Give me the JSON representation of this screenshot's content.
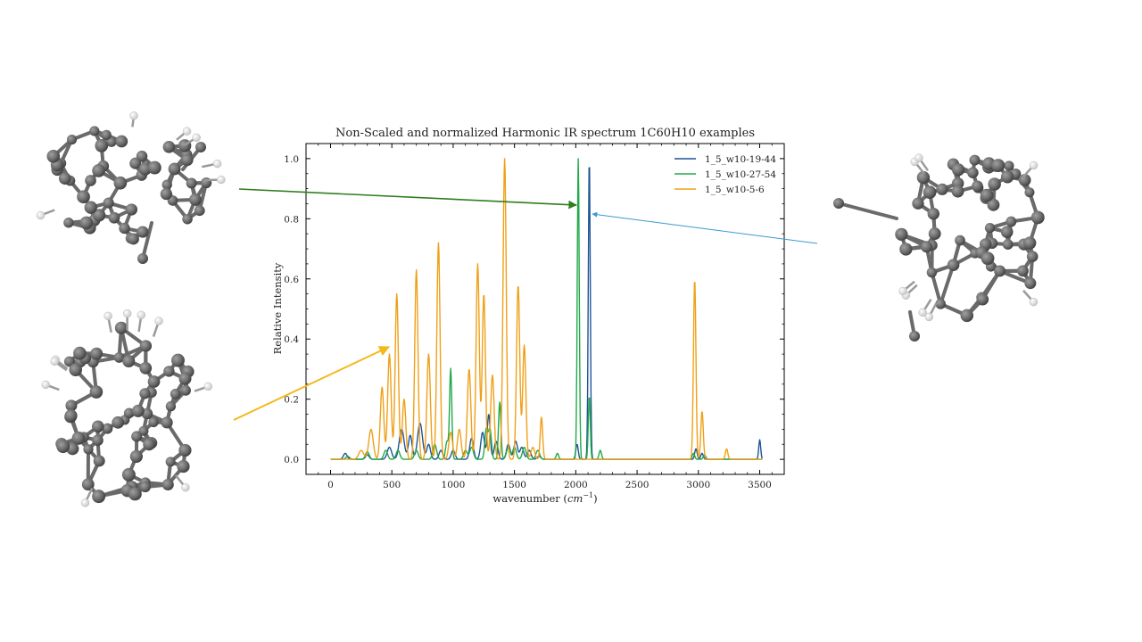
{
  "chart_data": {
    "type": "line",
    "title": "Non-Scaled and normalized Harmonic IR spectrum 1C60H10 examples",
    "xlabel": "wavenumber",
    "xlabel_unit": "cm",
    "xlabel_unit_exp": "−1",
    "ylabel": "Relative Intensity",
    "xlim": [
      -200,
      3700
    ],
    "ylim": [
      -0.05,
      1.05
    ],
    "xticks": [
      "0",
      "500",
      "1000",
      "1500",
      "2000",
      "2500",
      "3000",
      "3500"
    ],
    "yticks": [
      "0.0",
      "0.2",
      "0.4",
      "0.6",
      "0.8",
      "1.0"
    ],
    "grid": false,
    "legend_position": "top-right",
    "series": [
      {
        "name": "1_5_w10-19-44",
        "color": "#1f5596",
        "peaks": [
          [
            120,
            0.02,
            15
          ],
          [
            300,
            0.015,
            15
          ],
          [
            480,
            0.04,
            18
          ],
          [
            580,
            0.1,
            20
          ],
          [
            650,
            0.08,
            15
          ],
          [
            730,
            0.12,
            20
          ],
          [
            800,
            0.05,
            15
          ],
          [
            900,
            0.03,
            15
          ],
          [
            1000,
            0.03,
            15
          ],
          [
            1150,
            0.07,
            15
          ],
          [
            1240,
            0.09,
            15
          ],
          [
            1290,
            0.15,
            12
          ],
          [
            1350,
            0.06,
            15
          ],
          [
            1450,
            0.05,
            15
          ],
          [
            1510,
            0.06,
            15
          ],
          [
            1560,
            0.04,
            15
          ],
          [
            1620,
            0.03,
            15
          ],
          [
            1700,
            0.01,
            15
          ],
          [
            2010,
            0.05,
            10
          ],
          [
            2110,
            1.0,
            8
          ],
          [
            2980,
            0.035,
            10
          ],
          [
            3030,
            0.02,
            10
          ],
          [
            3500,
            0.065,
            8
          ]
        ]
      },
      {
        "name": "1_5_w10-27-54",
        "color": "#23a84a",
        "peaks": [
          [
            140,
            0.01,
            15
          ],
          [
            300,
            0.025,
            15
          ],
          [
            450,
            0.03,
            15
          ],
          [
            550,
            0.03,
            15
          ],
          [
            700,
            0.03,
            15
          ],
          [
            850,
            0.05,
            15
          ],
          [
            950,
            0.06,
            12
          ],
          [
            980,
            0.3,
            9
          ],
          [
            1100,
            0.03,
            15
          ],
          [
            1150,
            0.04,
            15
          ],
          [
            1270,
            0.1,
            12
          ],
          [
            1300,
            0.1,
            12
          ],
          [
            1380,
            0.19,
            10
          ],
          [
            1450,
            0.04,
            15
          ],
          [
            1500,
            0.04,
            15
          ],
          [
            1580,
            0.04,
            15
          ],
          [
            1690,
            0.03,
            15
          ],
          [
            1850,
            0.02,
            10
          ],
          [
            2020,
            1.0,
            8
          ],
          [
            2110,
            0.21,
            8
          ],
          [
            2200,
            0.03,
            10
          ],
          [
            2960,
            0.02,
            10
          ],
          [
            3050,
            0.015,
            10
          ]
        ]
      },
      {
        "name": "1_5_w10-5-6",
        "color": "#f0a018",
        "peaks": [
          [
            250,
            0.03,
            20
          ],
          [
            330,
            0.1,
            18
          ],
          [
            420,
            0.24,
            14
          ],
          [
            480,
            0.35,
            14
          ],
          [
            540,
            0.55,
            13
          ],
          [
            600,
            0.2,
            14
          ],
          [
            700,
            0.63,
            13
          ],
          [
            800,
            0.35,
            14
          ],
          [
            880,
            0.72,
            13
          ],
          [
            980,
            0.09,
            15
          ],
          [
            1050,
            0.1,
            15
          ],
          [
            1130,
            0.3,
            14
          ],
          [
            1200,
            0.65,
            13
          ],
          [
            1250,
            0.55,
            13
          ],
          [
            1320,
            0.28,
            14
          ],
          [
            1420,
            1.0,
            13
          ],
          [
            1530,
            0.58,
            13
          ],
          [
            1580,
            0.38,
            13
          ],
          [
            1650,
            0.04,
            15
          ],
          [
            1720,
            0.14,
            10
          ],
          [
            2970,
            0.6,
            10
          ],
          [
            3030,
            0.16,
            10
          ],
          [
            3230,
            0.035,
            10
          ]
        ]
      }
    ]
  }
}
